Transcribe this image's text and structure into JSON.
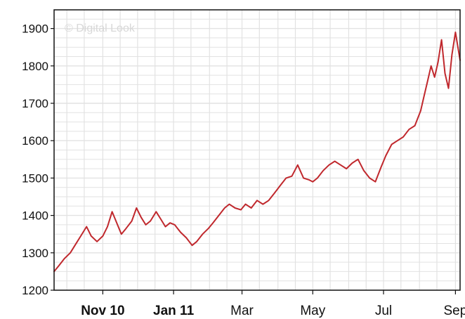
{
  "chart_data": {
    "type": "line",
    "title": "",
    "xlabel": "",
    "ylabel": "",
    "watermark": "© Digital Look",
    "ylim": [
      1200,
      1950
    ],
    "yticks": [
      1200,
      1300,
      1400,
      1500,
      1600,
      1700,
      1800,
      1900
    ],
    "xlim": [
      "2010-09-20",
      "2011-09-05"
    ],
    "xticks": [
      {
        "date": "2010-11-01",
        "label": "Nov 10",
        "bold": true
      },
      {
        "date": "2011-01-01",
        "label": "Jan 11",
        "bold": true
      },
      {
        "date": "2011-03-01",
        "label": "Mar",
        "bold": false
      },
      {
        "date": "2011-05-01",
        "label": "May",
        "bold": false
      },
      {
        "date": "2011-07-01",
        "label": "Jul",
        "bold": false
      },
      {
        "date": "2011-09-01",
        "label": "Sep",
        "bold": false
      }
    ],
    "grid": true,
    "colors": {
      "line": "#c0282d",
      "grid": "#e2e2e2",
      "axis": "#111111"
    },
    "series": [
      {
        "x": [
          "2010-09-20",
          "2010-09-24",
          "2010-09-29",
          "2010-10-04",
          "2010-10-08",
          "2010-10-13",
          "2010-10-18",
          "2010-10-22",
          "2010-10-27",
          "2010-11-01",
          "2010-11-05",
          "2010-11-09",
          "2010-11-13",
          "2010-11-17",
          "2010-11-21",
          "2010-11-26",
          "2010-11-30",
          "2010-12-04",
          "2010-12-08",
          "2010-12-12",
          "2010-12-17",
          "2010-12-21",
          "2010-12-25",
          "2010-12-29",
          "2011-01-02",
          "2011-01-07",
          "2011-01-12",
          "2011-01-17",
          "2011-01-21",
          "2011-01-26",
          "2011-01-31",
          "2011-02-04",
          "2011-02-09",
          "2011-02-14",
          "2011-02-18",
          "2011-02-23",
          "2011-02-28",
          "2011-03-04",
          "2011-03-09",
          "2011-03-14",
          "2011-03-19",
          "2011-03-24",
          "2011-03-29",
          "2011-04-03",
          "2011-04-08",
          "2011-04-13",
          "2011-04-18",
          "2011-04-23",
          "2011-04-28",
          "2011-05-01",
          "2011-05-05",
          "2011-05-10",
          "2011-05-15",
          "2011-05-20",
          "2011-05-25",
          "2011-05-30",
          "2011-06-04",
          "2011-06-09",
          "2011-06-14",
          "2011-06-19",
          "2011-06-24",
          "2011-06-29",
          "2011-07-03",
          "2011-07-08",
          "2011-07-13",
          "2011-07-18",
          "2011-07-23",
          "2011-07-28",
          "2011-08-02",
          "2011-08-05",
          "2011-08-08",
          "2011-08-11",
          "2011-08-14",
          "2011-08-17",
          "2011-08-20",
          "2011-08-23",
          "2011-08-26",
          "2011-08-29",
          "2011-09-01",
          "2011-09-05"
        ],
        "values": [
          1250,
          1265,
          1285,
          1300,
          1320,
          1345,
          1370,
          1345,
          1330,
          1345,
          1370,
          1410,
          1380,
          1350,
          1365,
          1385,
          1420,
          1395,
          1375,
          1385,
          1410,
          1390,
          1370,
          1380,
          1375,
          1355,
          1340,
          1320,
          1330,
          1350,
          1365,
          1380,
          1400,
          1420,
          1430,
          1420,
          1415,
          1430,
          1420,
          1440,
          1430,
          1440,
          1460,
          1480,
          1500,
          1505,
          1535,
          1500,
          1495,
          1490,
          1500,
          1520,
          1535,
          1545,
          1535,
          1525,
          1540,
          1550,
          1520,
          1500,
          1490,
          1530,
          1560,
          1590,
          1600,
          1610,
          1630,
          1640,
          1680,
          1720,
          1760,
          1800,
          1770,
          1810,
          1870,
          1780,
          1740,
          1830,
          1890,
          1815
        ]
      }
    ]
  }
}
